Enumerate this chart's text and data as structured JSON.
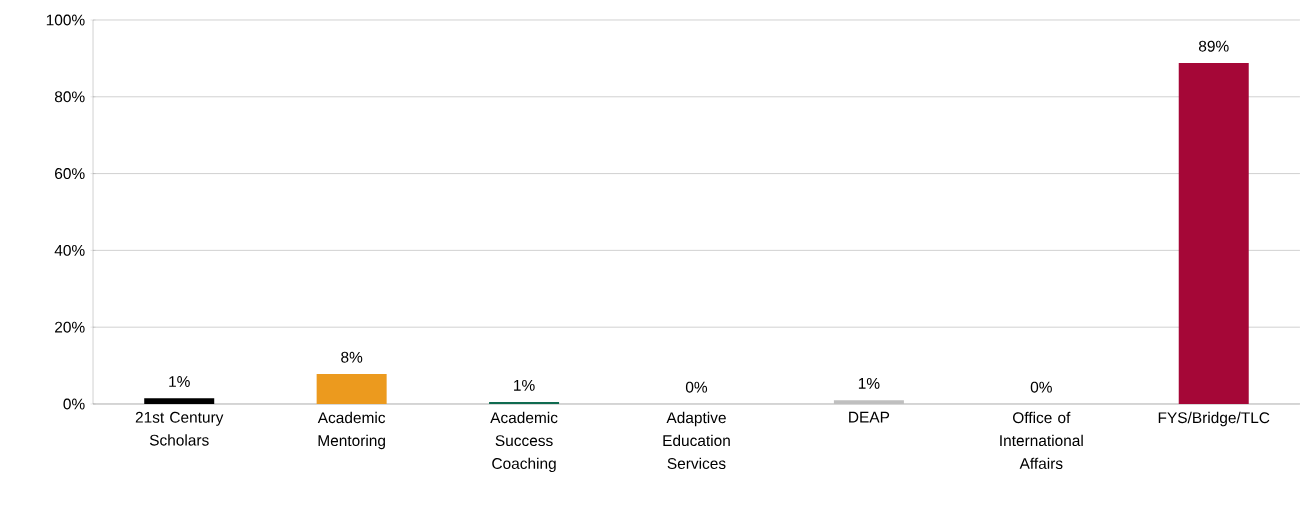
{
  "chart_data": {
    "type": "bar",
    "categories": [
      "21st Century Scholars",
      "Academic Mentoring",
      "Academic Success Coaching",
      "Adaptive Education Services",
      "DEAP",
      "Office of International Affairs",
      "FYS/Bridge/TLC"
    ],
    "values": [
      1.5,
      7.8,
      0.5,
      0,
      1,
      0,
      88.8
    ],
    "value_labels": [
      "1%",
      "8%",
      "1%",
      "0%",
      "1%",
      "0%",
      "89%"
    ],
    "colors": [
      "#000000",
      "#ec9a1e",
      "#0f6b50",
      "#bfbfbf",
      "#bfbfbf",
      "#bfbfbf",
      "#a50737"
    ],
    "ylim": [
      0,
      100
    ],
    "yticks": [
      {
        "value": 0,
        "label": "0%"
      },
      {
        "value": 20,
        "label": "20%"
      },
      {
        "value": 40,
        "label": "40%"
      },
      {
        "value": 60,
        "label": "60%"
      },
      {
        "value": 80,
        "label": "80%"
      },
      {
        "value": 100,
        "label": "100%"
      }
    ],
    "grid": "y"
  }
}
